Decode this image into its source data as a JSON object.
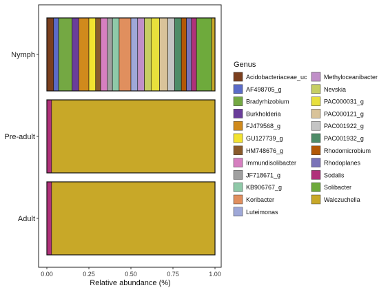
{
  "chart_data": {
    "type": "bar",
    "orientation": "horizontal",
    "stacked": true,
    "xlabel": "Relative abundance (%)",
    "xlim": [
      0,
      1.04
    ],
    "x_ticks": [
      "0.00",
      "0.25",
      "0.50",
      "0.75",
      "1.00"
    ],
    "x_tick_values": [
      0,
      0.25,
      0.5,
      0.75,
      1.0
    ],
    "categories": [
      "Nymph",
      "Pre-adult",
      "Adult"
    ],
    "legend_title": "Genus",
    "legend_position": "right",
    "series": [
      {
        "name": "Acidobacteriaceae_uc",
        "color": "#7B3F1E",
        "values": [
          0.04,
          0.0,
          0.0
        ]
      },
      {
        "name": "AF498705_g",
        "color": "#5B6BC8",
        "values": [
          0.03,
          0.0,
          0.0
        ]
      },
      {
        "name": "Bradyrhizobium",
        "color": "#74A843",
        "values": [
          0.08,
          0.0,
          0.0
        ]
      },
      {
        "name": "Burkholderia",
        "color": "#6A3D9A",
        "values": [
          0.04,
          0.0,
          0.0
        ]
      },
      {
        "name": "FJ479568_g",
        "color": "#D08A1C",
        "values": [
          0.06,
          0.0,
          0.0
        ]
      },
      {
        "name": "GU127739_g",
        "color": "#F2E230",
        "values": [
          0.04,
          0.0,
          0.0
        ]
      },
      {
        "name": "HM748676_g",
        "color": "#8A5A2B",
        "values": [
          0.03,
          0.0,
          0.0
        ]
      },
      {
        "name": "Immundisolibacter",
        "color": "#D67FC0",
        "values": [
          0.04,
          0.0,
          0.0
        ]
      },
      {
        "name": "JF718671_g",
        "color": "#A0A0A0",
        "values": [
          0.03,
          0.0,
          0.0
        ]
      },
      {
        "name": "KB906767_g",
        "color": "#8FC9A8",
        "values": [
          0.04,
          0.0,
          0.0
        ]
      },
      {
        "name": "Koribacter",
        "color": "#E08F5E",
        "values": [
          0.07,
          0.0,
          0.0
        ]
      },
      {
        "name": "Luteimonas",
        "color": "#9FA8D8",
        "values": [
          0.04,
          0.0,
          0.0
        ]
      },
      {
        "name": "Methyloceanibacter",
        "color": "#C08FC8",
        "values": [
          0.04,
          0.0,
          0.0
        ]
      },
      {
        "name": "Nevskia",
        "color": "#C6CE63",
        "values": [
          0.04,
          0.0,
          0.0
        ]
      },
      {
        "name": "PAC000031_g",
        "color": "#E8E03C",
        "values": [
          0.05,
          0.0,
          0.0
        ]
      },
      {
        "name": "PAC000121_g",
        "color": "#D9C39A",
        "values": [
          0.05,
          0.0,
          0.0
        ]
      },
      {
        "name": "PAC001922_g",
        "color": "#C4C4C4",
        "values": [
          0.04,
          0.0,
          0.0
        ]
      },
      {
        "name": "PAC001932_g",
        "color": "#4E8C68",
        "values": [
          0.04,
          0.0,
          0.0
        ]
      },
      {
        "name": "Rhodomicrobium",
        "color": "#B35806",
        "values": [
          0.03,
          0.0,
          0.0
        ]
      },
      {
        "name": "Rhodoplanes",
        "color": "#7A73B8",
        "values": [
          0.03,
          0.0,
          0.0
        ]
      },
      {
        "name": "Sodalis",
        "color": "#B0317A",
        "values": [
          0.03,
          0.028,
          0.028
        ]
      },
      {
        "name": "Solibacter",
        "color": "#6EAA3C",
        "values": [
          0.09,
          0.0,
          0.0
        ]
      },
      {
        "name": "Walczuchella",
        "color": "#C8A828",
        "values": [
          0.05,
          0.972,
          0.972
        ]
      }
    ]
  }
}
